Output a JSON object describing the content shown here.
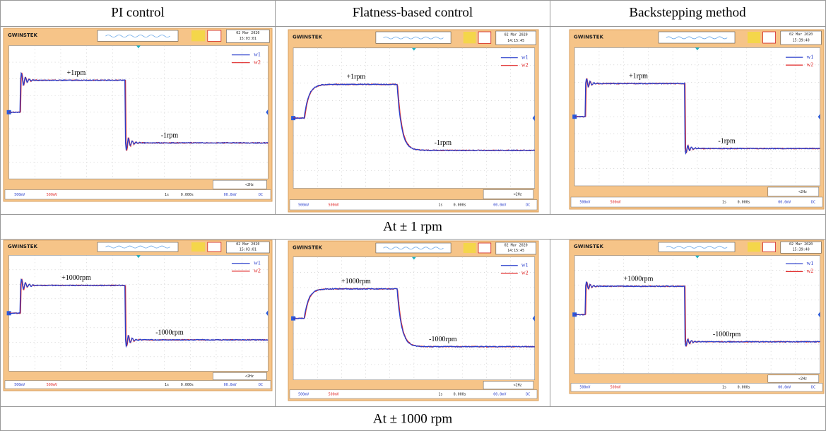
{
  "header": [
    "PI control",
    "Flatness-based control",
    "Backstepping method"
  ],
  "rows": [
    {
      "caption": "At ± 1 rpm",
      "scopes": [
        {
          "brand": "GWINSTEK",
          "date": "02 Mar 2020",
          "time": "15:03:01",
          "legend": [
            "w1",
            "w2"
          ],
          "high": "+1rpm",
          "low": "-1rpm",
          "ch1": "500mV",
          "ch2": "500mV",
          "timebase": "1s",
          "offset": "0.000s",
          "trigger": "00.0mV",
          "coupling": "DC",
          "freq": "<2Hz"
        },
        {
          "brand": "GWINSTEK",
          "date": "02 Mar 2020",
          "time": "14:15:45",
          "legend": [
            "w1",
            "w2"
          ],
          "high": "+1rpm",
          "low": "-1rpm",
          "ch1": "500mV",
          "ch2": "500mV",
          "timebase": "1s",
          "offset": "0.000s",
          "trigger": "00.0mV",
          "coupling": "DC",
          "freq": "<2Hz"
        },
        {
          "brand": "GWINSTEK",
          "date": "02 Mar 2020",
          "time": "15:39:40",
          "legend": [
            "w1",
            "w2"
          ],
          "high": "+1rpm",
          "low": "-1rpm",
          "ch1": "500mV",
          "ch2": "500mV",
          "timebase": "1s",
          "offset": "0.000s",
          "trigger": "00.0mV",
          "coupling": "DC",
          "freq": "<2Hz"
        }
      ]
    },
    {
      "caption": "At ± 1000 rpm",
      "scopes": [
        {
          "brand": "GWINSTEK",
          "date": "02 Mar 2020",
          "time": "15:03:01",
          "legend": [
            "w1",
            "w2"
          ],
          "high": "+1000rpm",
          "low": "-1000rpm",
          "ch1": "500mV",
          "ch2": "500mV",
          "timebase": "1s",
          "offset": "0.000s",
          "trigger": "00.0mV",
          "coupling": "DC",
          "freq": "<2Hz"
        },
        {
          "brand": "GWINSTEK",
          "date": "02 Mar 2020",
          "time": "14:15:45",
          "legend": [
            "w1",
            "w2"
          ],
          "high": "+1000rpm",
          "low": "-1000rpm",
          "ch1": "500mV",
          "ch2": "500mV",
          "timebase": "1s",
          "offset": "0.000s",
          "trigger": "00.0mV",
          "coupling": "DC",
          "freq": "<2Hz"
        },
        {
          "brand": "GWINSTEK",
          "date": "02 Mar 2020",
          "time": "15:39:40",
          "legend": [
            "w1",
            "w2"
          ],
          "high": "+1000rpm",
          "low": "-1000rpm",
          "ch1": "500mV",
          "ch2": "500mV",
          "timebase": "1s",
          "offset": "0.000s",
          "trigger": "00.0mV",
          "coupling": "DC",
          "freq": "<2Hz"
        }
      ]
    }
  ]
}
